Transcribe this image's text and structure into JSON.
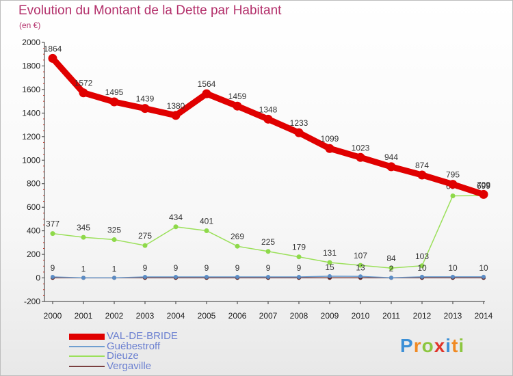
{
  "title": "Evolution du Montant de la Dette par Habitant",
  "unit_label": "(en €)",
  "logo": {
    "text": "Proxiti",
    "letter_colors": [
      "#3b8fd6",
      "#f08a24",
      "#8cc63f",
      "#e0352b",
      "#3b8fd6",
      "#f08a24",
      "#8cc63f"
    ]
  },
  "chart_data": {
    "type": "line",
    "title": "Evolution du Montant de la Dette par Habitant",
    "ylabel": "(en €)",
    "xlabel": "",
    "x": [
      2000,
      2001,
      2002,
      2003,
      2004,
      2005,
      2006,
      2007,
      2008,
      2009,
      2010,
      2011,
      2012,
      2013,
      2014
    ],
    "ylim": [
      -200,
      2000
    ],
    "yticks": [
      -200,
      0,
      200,
      400,
      600,
      800,
      1000,
      1200,
      1400,
      1600,
      1800,
      2000
    ],
    "grid": false,
    "legend_position": "bottom-left",
    "series": [
      {
        "name": "VAL-DE-BRIDE",
        "color": "#e00000",
        "values": [
          1864,
          1572,
          1495,
          1439,
          1380,
          1564,
          1459,
          1348,
          1233,
          1099,
          1023,
          944,
          874,
          795,
          709
        ],
        "labels": [
          "1864",
          "1572",
          "1495",
          "1439",
          "1380",
          "1564",
          "1459",
          "1348",
          "1233",
          "1099",
          "1023",
          "944",
          "874",
          "795",
          "709"
        ]
      },
      {
        "name": "Guébestroff",
        "color": "#6f9fd0",
        "values": [
          9,
          1,
          1,
          9,
          9,
          9,
          9,
          9,
          9,
          15,
          13,
          2,
          10,
          10,
          10
        ],
        "labels": [
          "9",
          "1",
          "1",
          "9",
          "9",
          "9",
          "9",
          "9",
          "9",
          "15",
          "13",
          "2",
          "10",
          "10",
          "10"
        ]
      },
      {
        "name": "Dieuze",
        "color": "#9be05a",
        "values": [
          377,
          345,
          325,
          275,
          434,
          401,
          269,
          225,
          179,
          131,
          107,
          84,
          103,
          697,
          699
        ],
        "labels": [
          "377",
          "345",
          "325",
          "275",
          "434",
          "401",
          "269",
          "225",
          "179",
          "131",
          "107",
          "84",
          "103",
          "697",
          "699"
        ]
      },
      {
        "name": "Vergaville",
        "color": "#7a3f3f",
        "values": [
          1,
          1,
          1,
          1,
          1,
          1,
          1,
          1,
          1,
          1,
          1,
          1,
          1,
          1,
          1
        ],
        "labels": []
      }
    ]
  }
}
